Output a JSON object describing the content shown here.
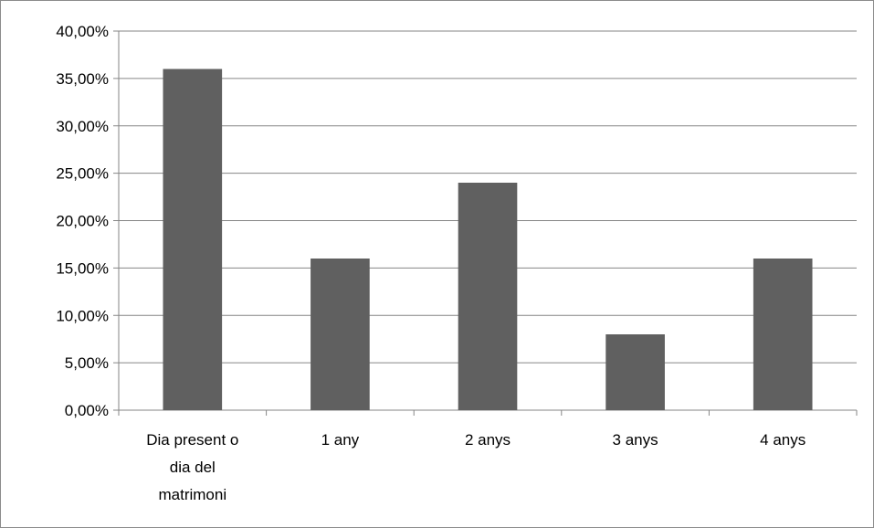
{
  "chart_data": {
    "type": "bar",
    "categories": [
      [
        "Dia present o",
        "dia del",
        "matrimoni"
      ],
      [
        "1 any"
      ],
      [
        "2 anys"
      ],
      [
        "3 anys"
      ],
      [
        "4 anys"
      ]
    ],
    "values": [
      36,
      16,
      24,
      8,
      16
    ],
    "ylim": [
      0,
      40
    ],
    "yticks": [
      0,
      5,
      10,
      15,
      20,
      25,
      30,
      35,
      40
    ],
    "ytick_labels": [
      "0,00%",
      "5,00%",
      "10,00%",
      "15,00%",
      "20,00%",
      "25,00%",
      "30,00%",
      "35,00%",
      "40,00%"
    ],
    "grid": true,
    "legend": "none",
    "bar_color": "#606060",
    "grid_color": "#868686",
    "title": "",
    "xlabel": "",
    "ylabel": ""
  }
}
